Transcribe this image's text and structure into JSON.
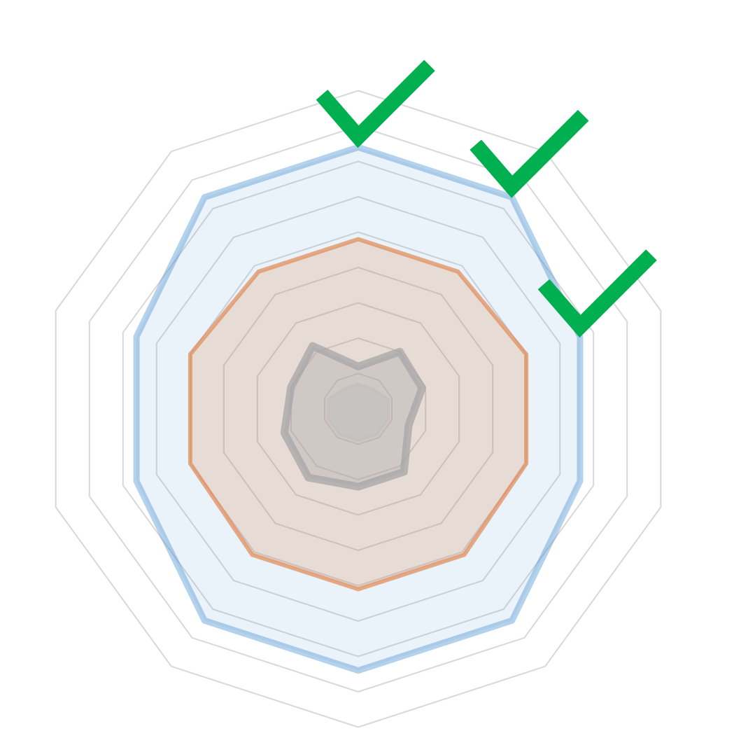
{
  "chart_data": {
    "type": "radar",
    "axes_count": 10,
    "rlim": [
      0,
      10
    ],
    "grid_levels": [
      1,
      2,
      3,
      4,
      5,
      6,
      7,
      8,
      9
    ],
    "grid": true,
    "legend": "none",
    "series": [
      {
        "values": [
          7.4,
          7.4,
          6.6,
          6.6,
          7.4,
          7.4,
          7.4,
          6.6,
          6.6,
          7.4
        ],
        "color": "#5b9bd5"
      },
      {
        "values": [
          4.8,
          4.8,
          5.0,
          5.0,
          5.1,
          5.1,
          5.1,
          5.0,
          5.0,
          4.8
        ],
        "color": "#e08a55"
      },
      {
        "values": [
          1.2,
          2.0,
          1.9,
          1.5,
          2.2,
          2.2,
          2.4,
          2.2,
          2.0,
          2.2
        ],
        "color": "#a6a6a6"
      },
      {
        "values": [
          0.7,
          0.7,
          0.9,
          0.9,
          0.9,
          0.9,
          0.9,
          0.9,
          0.9,
          0.7
        ],
        "color": "#bdbdbd"
      }
    ],
    "highlighted_axes": [
      0,
      1,
      2
    ],
    "highlight_color": "#00b050",
    "highlight_icon": "check-icon"
  }
}
